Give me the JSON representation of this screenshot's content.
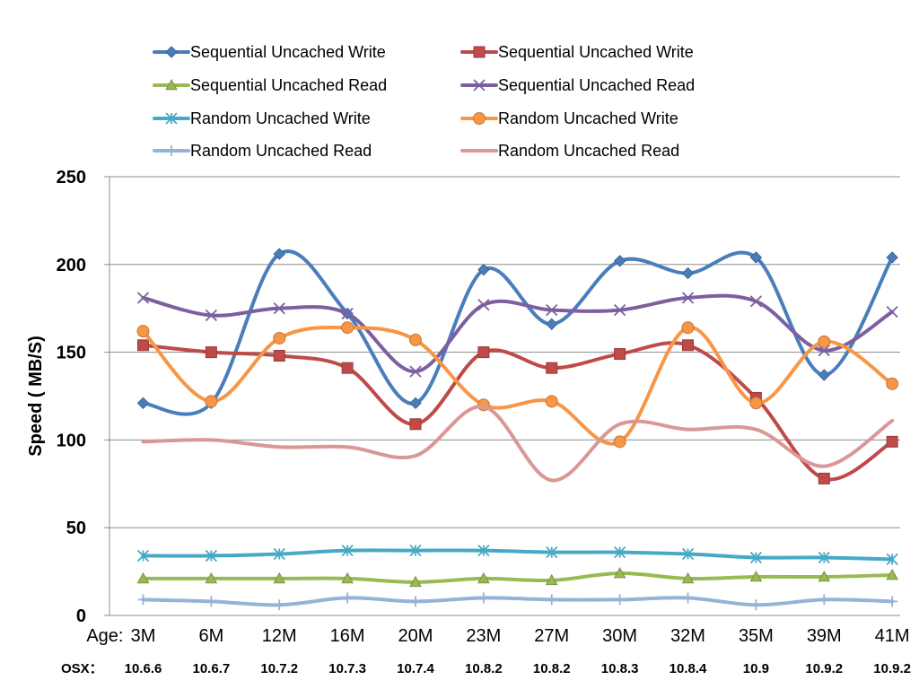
{
  "chart_data": {
    "type": "line",
    "ylabel": "Speed ( MB/S)",
    "ylim": [
      0,
      250
    ],
    "yticks": [
      0,
      50,
      100,
      150,
      200,
      250
    ],
    "grid": "horizontal",
    "legend_position": "top",
    "x_prefix_label": "Age:",
    "categories": [
      "3M",
      "6M",
      "12M",
      "16M",
      "20M",
      "23M",
      "27M",
      "30M",
      "32M",
      "35M",
      "39M",
      "41M"
    ],
    "osx_prefix_label": "OSX：",
    "osx_versions": [
      "10.6.6",
      "10.6.7",
      "10.7.2",
      "10.7.3",
      "10.7.4",
      "10.8.2",
      "10.8.2",
      "10.8.3",
      "10.8.4",
      "10.9",
      "10.9.2",
      "10.9.2"
    ],
    "series": [
      {
        "name": "Sequential Uncached Write",
        "color": "#4A7EBB",
        "marker": "diamond",
        "values": [
          121,
          121,
          206,
          172,
          121,
          197,
          166,
          202,
          195,
          204,
          137,
          204
        ]
      },
      {
        "name": "Sequential Uncached Write",
        "color": "#BE4B48",
        "marker": "square",
        "values": [
          154,
          150,
          148,
          141,
          109,
          150,
          141,
          149,
          154,
          124,
          78,
          99
        ]
      },
      {
        "name": "Sequential Uncached Read",
        "color": "#98B954",
        "marker": "triangle",
        "values": [
          21,
          21,
          21,
          21,
          19,
          21,
          20,
          24,
          21,
          22,
          22,
          23
        ]
      },
      {
        "name": "Sequential Uncached Read",
        "color": "#7D5FA0",
        "marker": "x",
        "values": [
          181,
          171,
          175,
          172,
          139,
          177,
          174,
          174,
          181,
          179,
          151,
          173
        ]
      },
      {
        "name": "Random Uncached Write",
        "color": "#46AAC5",
        "marker": "star",
        "values": [
          34,
          34,
          35,
          37,
          37,
          37,
          36,
          36,
          35,
          33,
          33,
          32
        ]
      },
      {
        "name": "Random Uncached Write",
        "color": "#F79646",
        "marker": "circle",
        "values": [
          162,
          122,
          158,
          164,
          157,
          120,
          122,
          99,
          164,
          121,
          156,
          132
        ]
      },
      {
        "name": "Random Uncached Read",
        "color": "#95B3D7",
        "marker": "plus",
        "values": [
          9,
          8,
          6,
          10,
          8,
          10,
          9,
          9,
          10,
          6,
          9,
          8
        ]
      },
      {
        "name": "Random Uncached Read",
        "color": "#D99795",
        "marker": "none",
        "values": [
          99,
          100,
          96,
          96,
          91,
          119,
          77,
          109,
          106,
          106,
          85,
          111
        ]
      }
    ]
  }
}
